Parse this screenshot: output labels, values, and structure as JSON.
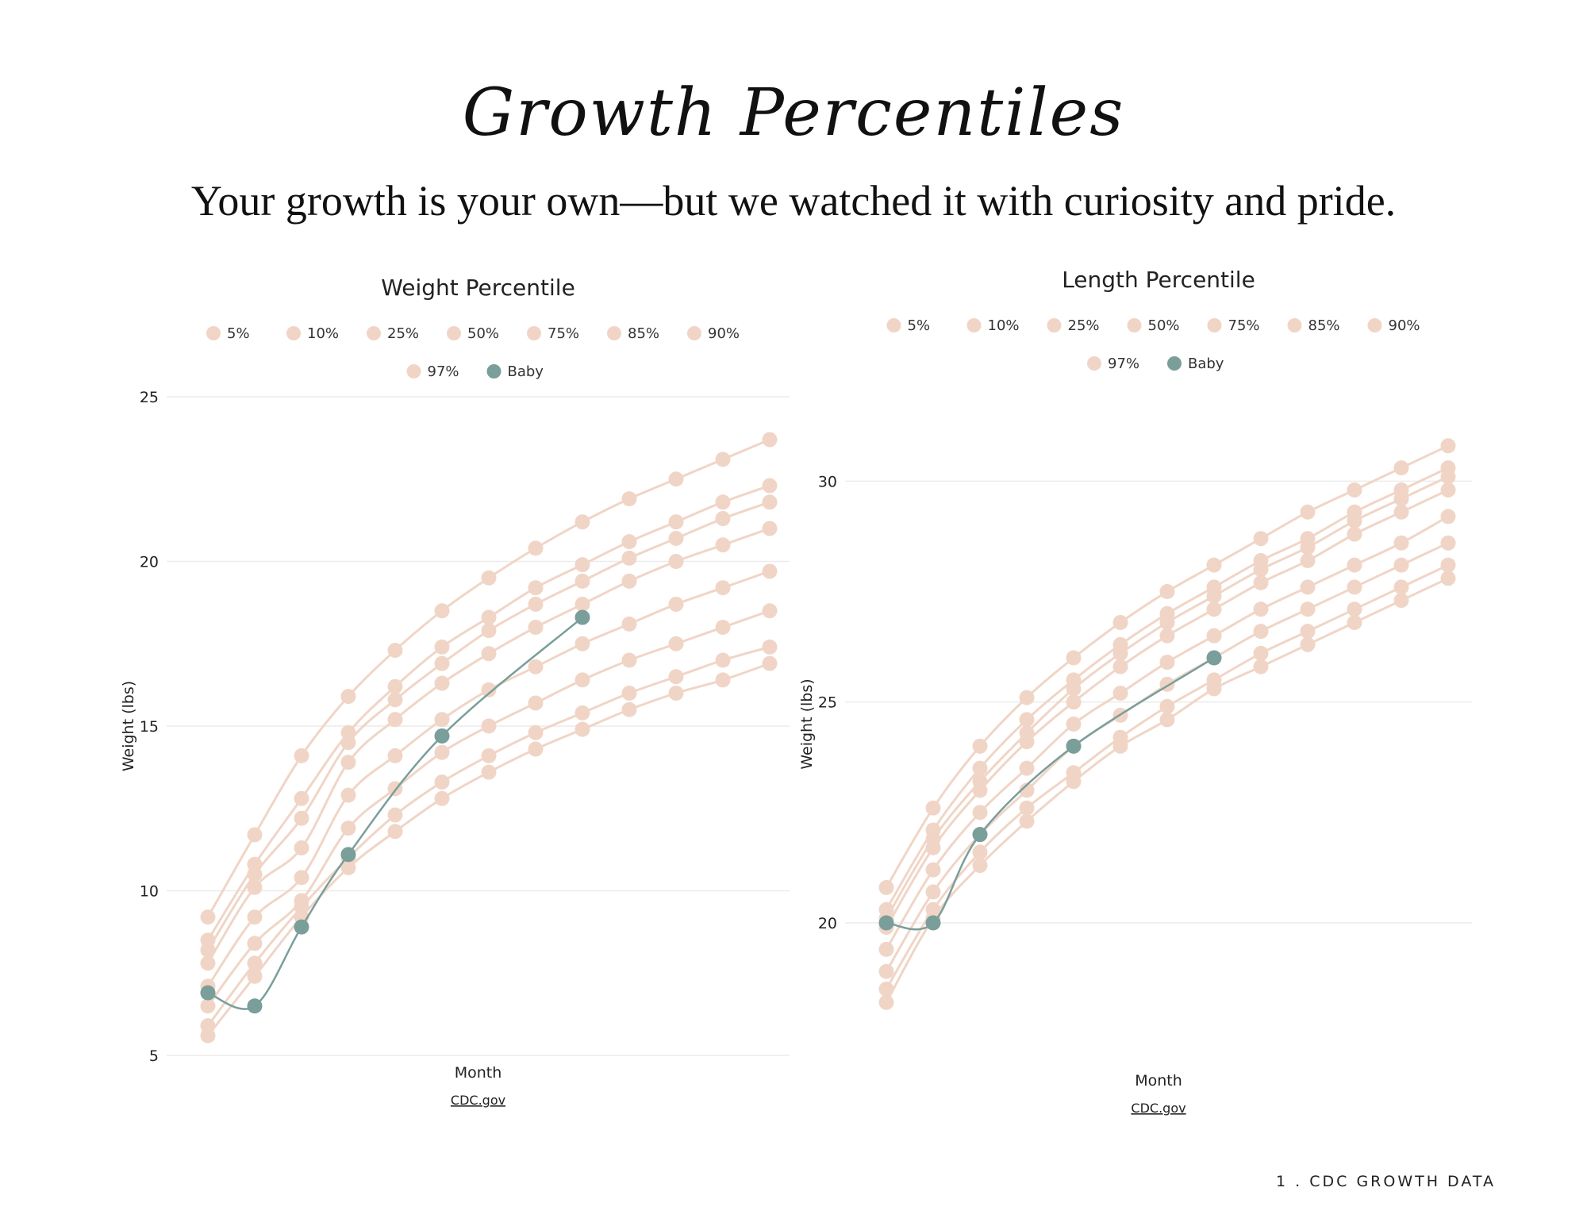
{
  "header": {
    "script_title": "Growth Percentiles",
    "subtitle": "Your growth is your own—but we watched it with curiosity and pride."
  },
  "footnote": "1 . CDC GROWTH DATA",
  "colors": {
    "percentile": "#f0d5c6",
    "baby": "#7a9e9a",
    "grid": "#ececec"
  },
  "chart_data": [
    {
      "type": "line",
      "title": "Weight Percentile",
      "xlabel": "Month",
      "ylabel": "Weight (lbs)",
      "source": "CDC.gov",
      "ylim": [
        5,
        25
      ],
      "yticks": [
        5,
        10,
        15,
        20,
        25
      ],
      "x": [
        0,
        1,
        2,
        3,
        4,
        5,
        6,
        7,
        8,
        9,
        10,
        11,
        12
      ],
      "grid": true,
      "legend_position": "top-center",
      "legend": [
        "5%",
        "10%",
        "25%",
        "50%",
        "75%",
        "85%",
        "90%",
        "97%",
        "Baby"
      ],
      "series": [
        {
          "name": "5%",
          "values": [
            5.6,
            7.4,
            9.2,
            10.7,
            11.8,
            12.8,
            13.6,
            14.3,
            14.9,
            15.5,
            16.0,
            16.4,
            16.9
          ]
        },
        {
          "name": "10%",
          "values": [
            5.9,
            7.8,
            9.5,
            11.0,
            12.3,
            13.3,
            14.1,
            14.8,
            15.4,
            16.0,
            16.5,
            17.0,
            17.4
          ]
        },
        {
          "name": "25%",
          "values": [
            6.5,
            8.4,
            9.7,
            11.9,
            13.1,
            14.2,
            15.0,
            15.7,
            16.4,
            17.0,
            17.5,
            18.0,
            18.5
          ]
        },
        {
          "name": "50%",
          "values": [
            7.1,
            9.2,
            10.4,
            12.9,
            14.1,
            15.2,
            16.1,
            16.8,
            17.5,
            18.1,
            18.7,
            19.2,
            19.7
          ]
        },
        {
          "name": "75%",
          "values": [
            7.8,
            10.1,
            11.3,
            13.9,
            15.2,
            16.3,
            17.2,
            18.0,
            18.7,
            19.4,
            20.0,
            20.5,
            21.0
          ]
        },
        {
          "name": "85%",
          "values": [
            8.2,
            10.5,
            12.2,
            14.5,
            15.8,
            16.9,
            17.9,
            18.7,
            19.4,
            20.1,
            20.7,
            21.3,
            21.8
          ]
        },
        {
          "name": "90%",
          "values": [
            8.5,
            10.8,
            12.8,
            14.8,
            16.2,
            17.4,
            18.3,
            19.2,
            19.9,
            20.6,
            21.2,
            21.8,
            22.3
          ]
        },
        {
          "name": "97%",
          "values": [
            9.2,
            11.7,
            14.1,
            15.9,
            17.3,
            18.5,
            19.5,
            20.4,
            21.2,
            21.9,
            22.5,
            23.1,
            23.7
          ]
        },
        {
          "name": "Baby",
          "values": [
            6.9,
            6.5,
            8.9,
            11.1,
            null,
            14.7,
            null,
            null,
            18.3,
            null,
            null,
            null,
            null
          ]
        }
      ]
    },
    {
      "type": "line",
      "title": "Length Percentile",
      "xlabel": "Month",
      "ylabel": "Weight (lbs)",
      "source": "CDC.gov",
      "ylim": [
        17,
        32
      ],
      "yticks": [
        20,
        25,
        30
      ],
      "x": [
        0,
        1,
        2,
        3,
        4,
        5,
        6,
        7,
        8,
        9,
        10,
        11,
        12
      ],
      "grid": true,
      "legend_position": "top-center",
      "legend": [
        "5%",
        "10%",
        "25%",
        "50%",
        "75%",
        "85%",
        "90%",
        "97%",
        "Baby"
      ],
      "series": [
        {
          "name": "5%",
          "values": [
            18.2,
            20.1,
            21.3,
            22.3,
            23.2,
            24.0,
            24.6,
            25.3,
            25.8,
            26.3,
            26.8,
            27.3,
            27.8
          ]
        },
        {
          "name": "10%",
          "values": [
            18.5,
            20.3,
            21.6,
            22.6,
            23.4,
            24.2,
            24.9,
            25.5,
            26.1,
            26.6,
            27.1,
            27.6,
            28.1
          ]
        },
        {
          "name": "25%",
          "values": [
            18.9,
            20.7,
            22.0,
            23.0,
            24.0,
            24.7,
            25.4,
            26.0,
            26.6,
            27.1,
            27.6,
            28.1,
            28.6
          ]
        },
        {
          "name": "50%",
          "values": [
            19.4,
            21.2,
            22.5,
            23.5,
            24.5,
            25.2,
            25.9,
            26.5,
            27.1,
            27.6,
            28.1,
            28.6,
            29.2
          ]
        },
        {
          "name": "75%",
          "values": [
            19.9,
            21.7,
            23.0,
            24.1,
            25.0,
            25.8,
            26.5,
            27.1,
            27.7,
            28.2,
            28.8,
            29.3,
            29.8
          ]
        },
        {
          "name": "85%",
          "values": [
            20.1,
            21.9,
            23.2,
            24.3,
            25.3,
            26.1,
            26.8,
            27.4,
            28.0,
            28.5,
            29.1,
            29.6,
            30.1
          ]
        },
        {
          "name": "90%",
          "values": [
            20.3,
            22.1,
            23.5,
            24.6,
            25.5,
            26.3,
            27.0,
            27.6,
            28.2,
            28.7,
            29.3,
            29.8,
            30.3
          ]
        },
        {
          "name": "97%",
          "values": [
            20.8,
            22.6,
            24.0,
            25.1,
            26.0,
            26.8,
            27.5,
            28.1,
            28.7,
            29.3,
            29.8,
            30.3,
            30.8
          ]
        },
        {
          "name": "Baby",
          "values": [
            20.0,
            20.0,
            22.0,
            null,
            24.0,
            null,
            null,
            26.0,
            null,
            null,
            null,
            null,
            null
          ]
        }
      ]
    }
  ]
}
